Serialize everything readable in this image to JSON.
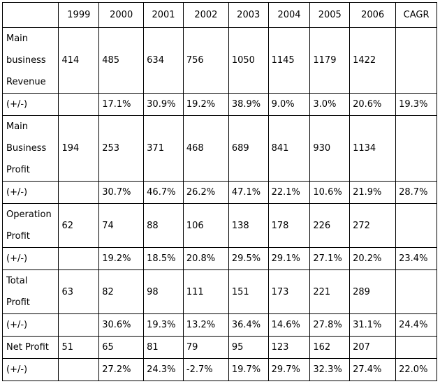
{
  "chart_data": {
    "type": "table",
    "title": "",
    "columns": [
      "",
      "1999",
      "2000",
      "2001",
      "2002",
      "2003",
      "2004",
      "2005",
      "2006",
      "CAGR"
    ],
    "rows": [
      {
        "label_lines": [
          "Main",
          "business",
          "Revenue"
        ],
        "cells": [
          "414",
          "485",
          "634",
          "756",
          "1050",
          "1145",
          "1179",
          "1422",
          ""
        ]
      },
      {
        "label_lines": [
          "(+/-)"
        ],
        "cells": [
          "",
          "17.1%",
          "30.9%",
          "19.2%",
          "38.9%",
          "9.0%",
          "3.0%",
          "20.6%",
          "19.3%"
        ]
      },
      {
        "label_lines": [
          "Main",
          "Business",
          "Profit"
        ],
        "cells": [
          "194",
          "253",
          "371",
          "468",
          "689",
          "841",
          "930",
          "1134",
          ""
        ]
      },
      {
        "label_lines": [
          "(+/-)"
        ],
        "cells": [
          "",
          "30.7%",
          "46.7%",
          "26.2%",
          "47.1%",
          "22.1%",
          "10.6%",
          "21.9%",
          "28.7%"
        ]
      },
      {
        "label_lines": [
          "Operation",
          "Profit"
        ],
        "cells": [
          "62",
          "74",
          "88",
          "106",
          "138",
          "178",
          "226",
          "272",
          ""
        ]
      },
      {
        "label_lines": [
          "(+/-)"
        ],
        "cells": [
          "",
          "19.2%",
          "18.5%",
          "20.8%",
          "29.5%",
          "29.1%",
          "27.1%",
          "20.2%",
          "23.4%"
        ]
      },
      {
        "label_lines": [
          "Total",
          "Profit"
        ],
        "cells": [
          "63",
          "82",
          "98",
          "111",
          "151",
          "173",
          "221",
          "289",
          ""
        ]
      },
      {
        "label_lines": [
          "(+/-)"
        ],
        "cells": [
          "",
          "30.6%",
          "19.3%",
          "13.2%",
          "36.4%",
          "14.6%",
          "27.8%",
          "31.1%",
          "24.4%"
        ]
      },
      {
        "label_lines": [
          "Net Profit"
        ],
        "cells": [
          "51",
          "65",
          "81",
          "79",
          "95",
          "123",
          "162",
          "207",
          ""
        ]
      },
      {
        "label_lines": [
          "(+/-)"
        ],
        "cells": [
          "",
          "27.2%",
          "24.3%",
          "-2.7%",
          "19.7%",
          "29.7%",
          "32.3%",
          "27.4%",
          "22.0%"
        ]
      }
    ]
  }
}
